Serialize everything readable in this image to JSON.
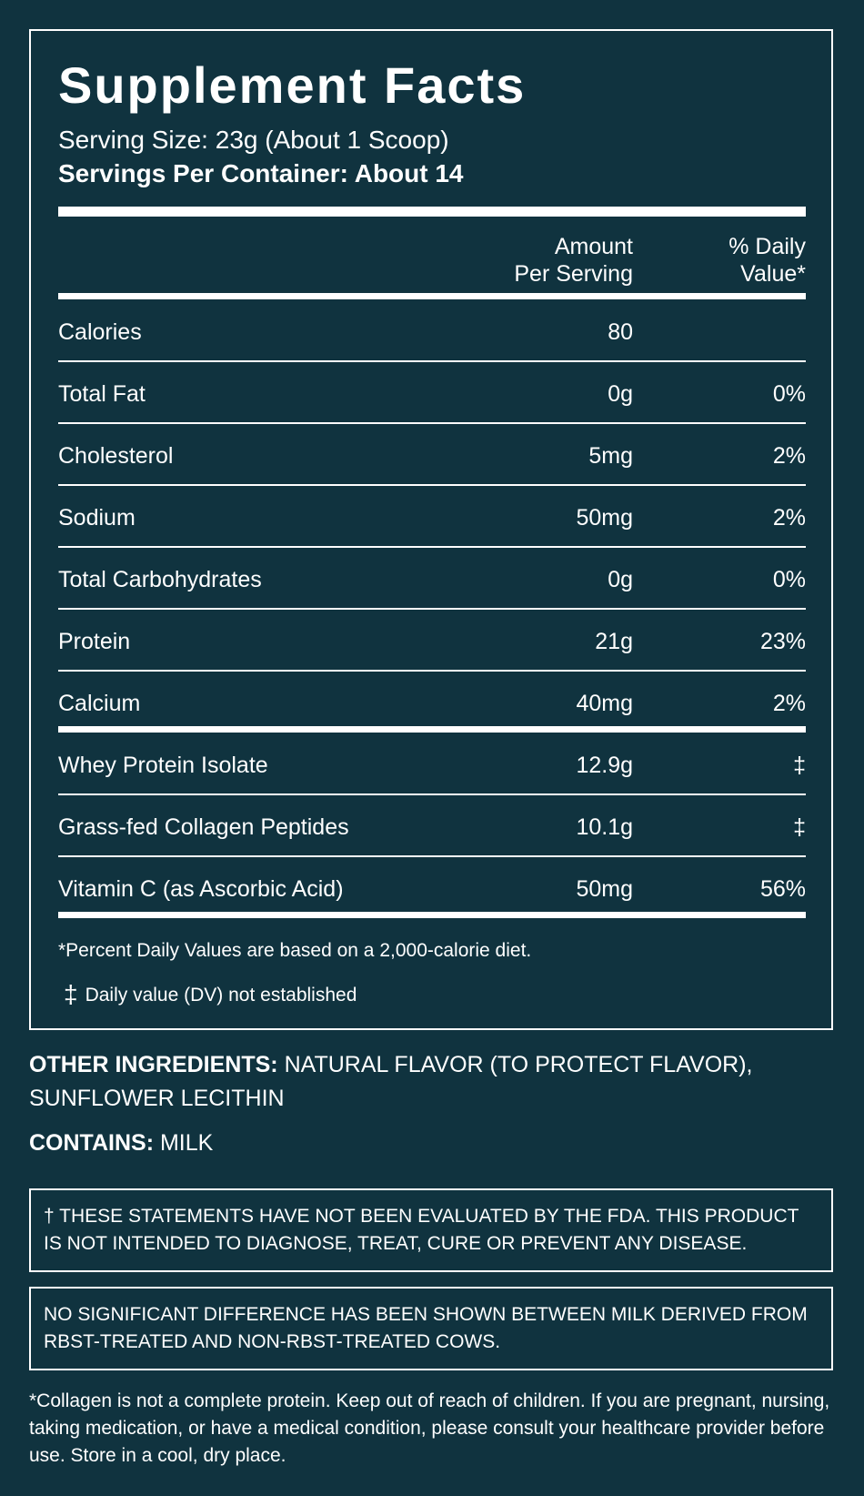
{
  "title": "Supplement Facts",
  "serving_size": "Serving Size: 23g (About 1 Scoop)",
  "servings_per_container": "Servings Per Container: About 14",
  "headers": {
    "amount": [
      "Amount",
      "Per Serving"
    ],
    "dv": [
      "% Daily",
      "Value*"
    ]
  },
  "rows": [
    {
      "name": "Calories",
      "amount": "80",
      "dv": ""
    },
    {
      "name": "Total Fat",
      "amount": "0g",
      "dv": "0%"
    },
    {
      "name": "Cholesterol",
      "amount": "5mg",
      "dv": "2%"
    },
    {
      "name": "Sodium",
      "amount": "50mg",
      "dv": "2%"
    },
    {
      "name": "Total Carbohydrates",
      "amount": "0g",
      "dv": "0%"
    },
    {
      "name": "Protein",
      "amount": "21g",
      "dv": "23%"
    },
    {
      "name": "Calcium",
      "amount": "40mg",
      "dv": "2%"
    },
    {
      "name": "Whey Protein Isolate",
      "amount": "12.9g",
      "dv": "‡"
    },
    {
      "name": "Grass-fed Collagen Peptides",
      "amount": "10.1g",
      "dv": "‡"
    },
    {
      "name": "Vitamin C (as Ascorbic Acid)",
      "amount": "50mg",
      "dv": "56%"
    }
  ],
  "footnote_percent": "*Percent Daily Values are based on a 2,000-calorie diet.",
  "footnote_dagger": {
    "symbol": "‡",
    "text": "Daily value (DV) not established"
  },
  "other_ingredients": {
    "label": "OTHER INGREDIENTS:",
    "text": "NATURAL FLAVOR (TO PROTECT FLAVOR), SUNFLOWER LECITHIN"
  },
  "contains": {
    "label": "CONTAINS:",
    "text": "MILK"
  },
  "fda_statement": "† THESE STATEMENTS HAVE NOT BEEN EVALUATED BY THE FDA.  THIS PRODUCT IS NOT INTENDED TO DIAGNOSE, TREAT, CURE OR PREVENT ANY DISEASE.",
  "rbst_statement": "NO SIGNIFICANT DIFFERENCE HAS BEEN SHOWN BETWEEN MILK DERIVED FROM RBST-TREATED AND NON-RBST-TREATED COWS.",
  "disclaimer": "*Collagen is not a complete protein. Keep out of reach of children. If you are pregnant, nursing, taking medication, or have a medical condition, please consult your healthcare provider before use. Store in a cool, dry place.",
  "colors": {
    "background": "#10333f",
    "foreground": "#ffffff"
  }
}
